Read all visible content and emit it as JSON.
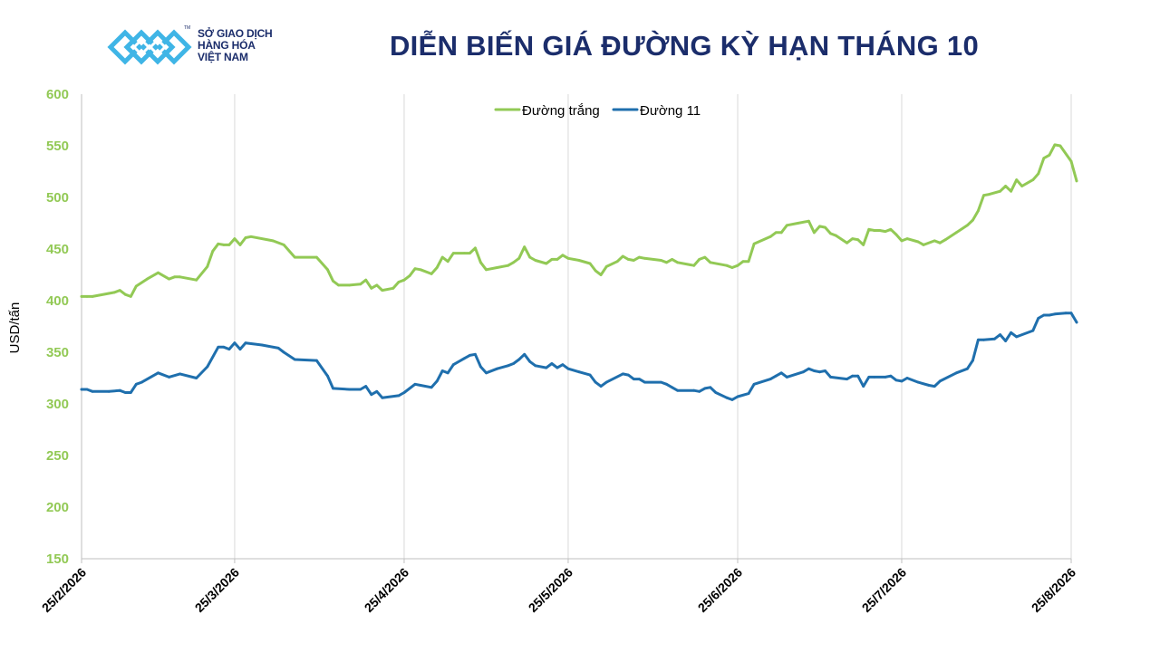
{
  "logo": {
    "icon": "vietnam-commodity-exchange-logo",
    "lines": [
      "SỞ GIAO DỊCH",
      "HÀNG HÓA",
      "VIỆT NAM"
    ],
    "colors": {
      "light": "#3fb5e6",
      "dark": "#1b2d6b"
    }
  },
  "colors": {
    "white_sugar": "#92c955",
    "raw_sugar": "#1f6fad",
    "title": "#1b2d6b",
    "grid": "#d9d9d9"
  },
  "chart_data": {
    "type": "line",
    "title": "DIỄN BIẾN GIÁ ĐƯỜNG KỲ HẠN THÁNG 10",
    "xlabel": "",
    "ylabel": "USD/tấn",
    "ylim": [
      150,
      600
    ],
    "yticks": [
      "600",
      "550",
      "500",
      "450",
      "400",
      "350",
      "300",
      "250",
      "200",
      "150"
    ],
    "xticks": [
      "25/2/2026",
      "25/3/2026",
      "25/4/2026",
      "25/5/2026",
      "25/6/2026",
      "25/7/2026",
      "25/8/2026"
    ],
    "grid": "vertical",
    "legend": "top-center",
    "series": [
      {
        "name": "Đường trắng",
        "color": "#92c955",
        "points": [
          [
            "25/2/2026",
            404
          ],
          [
            "26/2/2026",
            404
          ],
          [
            "27/2/2026",
            404
          ],
          [
            "2/3/2026",
            407
          ],
          [
            "3/3/2026",
            408
          ],
          [
            "4/3/2026",
            410
          ],
          [
            "5/3/2026",
            406
          ],
          [
            "6/3/2026",
            404
          ],
          [
            "7/3/2026",
            414
          ],
          [
            "9/3/2026",
            421
          ],
          [
            "11/3/2026",
            427
          ],
          [
            "13/3/2026",
            421
          ],
          [
            "14/3/2026",
            423
          ],
          [
            "15/3/2026",
            423
          ],
          [
            "18/3/2026",
            420
          ],
          [
            "20/3/2026",
            433
          ],
          [
            "21/3/2026",
            448
          ],
          [
            "22/3/2026",
            455
          ],
          [
            "23/3/2026",
            454
          ],
          [
            "24/3/2026",
            454
          ],
          [
            "25/3/2026",
            460
          ],
          [
            "26/3/2026",
            454
          ],
          [
            "27/3/2026",
            461
          ],
          [
            "28/3/2026",
            462
          ],
          [
            "1/4/2026",
            458
          ],
          [
            "3/4/2026",
            454
          ],
          [
            "5/4/2026",
            442
          ],
          [
            "9/4/2026",
            442
          ],
          [
            "11/4/2026",
            430
          ],
          [
            "12/4/2026",
            419
          ],
          [
            "13/4/2026",
            415
          ],
          [
            "15/4/2026",
            415
          ],
          [
            "17/4/2026",
            416
          ],
          [
            "18/4/2026",
            420
          ],
          [
            "19/4/2026",
            412
          ],
          [
            "20/4/2026",
            415
          ],
          [
            "21/4/2026",
            410
          ],
          [
            "23/4/2026",
            412
          ],
          [
            "24/4/2026",
            418
          ],
          [
            "25/4/2026",
            420
          ],
          [
            "26/4/2026",
            424
          ],
          [
            "27/4/2026",
            431
          ],
          [
            "28/4/2026",
            430
          ],
          [
            "30/4/2026",
            426
          ],
          [
            "1/5/2026",
            432
          ],
          [
            "2/5/2026",
            442
          ],
          [
            "3/5/2026",
            438
          ],
          [
            "4/5/2026",
            446
          ],
          [
            "6/5/2026",
            446
          ],
          [
            "7/5/2026",
            446
          ],
          [
            "8/5/2026",
            451
          ],
          [
            "9/5/2026",
            437
          ],
          [
            "10/5/2026",
            430
          ],
          [
            "12/5/2026",
            432
          ],
          [
            "14/5/2026",
            434
          ],
          [
            "15/5/2026",
            437
          ],
          [
            "16/5/2026",
            441
          ],
          [
            "17/5/2026",
            452
          ],
          [
            "18/5/2026",
            442
          ],
          [
            "19/5/2026",
            439
          ],
          [
            "21/5/2026",
            436
          ],
          [
            "22/5/2026",
            440
          ],
          [
            "23/5/2026",
            440
          ],
          [
            "24/5/2026",
            444
          ],
          [
            "25/5/2026",
            441
          ],
          [
            "27/5/2026",
            439
          ],
          [
            "29/5/2026",
            436
          ],
          [
            "30/5/2026",
            429
          ],
          [
            "31/5/2026",
            425
          ],
          [
            "1/6/2026",
            433
          ],
          [
            "3/6/2026",
            438
          ],
          [
            "4/6/2026",
            443
          ],
          [
            "5/6/2026",
            440
          ],
          [
            "6/6/2026",
            439
          ],
          [
            "7/6/2026",
            442
          ],
          [
            "8/6/2026",
            441
          ],
          [
            "11/6/2026",
            439
          ],
          [
            "12/6/2026",
            437
          ],
          [
            "13/6/2026",
            440
          ],
          [
            "14/6/2026",
            437
          ],
          [
            "17/6/2026",
            434
          ],
          [
            "18/6/2026",
            440
          ],
          [
            "19/6/2026",
            442
          ],
          [
            "20/6/2026",
            437
          ],
          [
            "23/6/2026",
            434
          ],
          [
            "24/6/2026",
            432
          ],
          [
            "25/6/2026",
            434
          ],
          [
            "26/6/2026",
            438
          ],
          [
            "27/6/2026",
            438
          ],
          [
            "28/6/2026",
            455
          ],
          [
            "1/7/2026",
            462
          ],
          [
            "2/7/2026",
            466
          ],
          [
            "3/7/2026",
            466
          ],
          [
            "4/7/2026",
            473
          ],
          [
            "6/7/2026",
            475
          ],
          [
            "8/7/2026",
            477
          ],
          [
            "9/7/2026",
            466
          ],
          [
            "10/7/2026",
            472
          ],
          [
            "11/7/2026",
            471
          ],
          [
            "12/7/2026",
            465
          ],
          [
            "13/7/2026",
            463
          ],
          [
            "15/7/2026",
            456
          ],
          [
            "16/7/2026",
            460
          ],
          [
            "17/7/2026",
            459
          ],
          [
            "18/7/2026",
            454
          ],
          [
            "19/7/2026",
            469
          ],
          [
            "20/7/2026",
            468
          ],
          [
            "21/7/2026",
            468
          ],
          [
            "22/7/2026",
            467
          ],
          [
            "23/7/2026",
            469
          ],
          [
            "24/7/2026",
            464
          ],
          [
            "25/7/2026",
            458
          ],
          [
            "26/7/2026",
            460
          ],
          [
            "28/7/2026",
            457
          ],
          [
            "29/7/2026",
            454
          ],
          [
            "31/7/2026",
            458
          ],
          [
            "1/8/2026",
            456
          ],
          [
            "2/8/2026",
            459
          ],
          [
            "4/8/2026",
            466
          ],
          [
            "6/8/2026",
            473
          ],
          [
            "7/8/2026",
            478
          ],
          [
            "8/8/2026",
            487
          ],
          [
            "9/8/2026",
            502
          ],
          [
            "10/8/2026",
            503
          ],
          [
            "12/8/2026",
            506
          ],
          [
            "13/8/2026",
            511
          ],
          [
            "14/8/2026",
            506
          ],
          [
            "15/8/2026",
            517
          ],
          [
            "16/8/2026",
            511
          ],
          [
            "18/8/2026",
            517
          ],
          [
            "19/8/2026",
            523
          ],
          [
            "20/8/2026",
            538
          ],
          [
            "21/8/2026",
            541
          ],
          [
            "22/8/2026",
            551
          ],
          [
            "23/8/2026",
            550
          ],
          [
            "25/8/2026",
            535
          ],
          [
            "26/8/2026",
            516
          ]
        ]
      },
      {
        "name": "Đường 11",
        "color": "#1f6fad",
        "points": [
          [
            "25/2/2026",
            314
          ],
          [
            "26/2/2026",
            314
          ],
          [
            "27/2/2026",
            312
          ],
          [
            "2/3/2026",
            312
          ],
          [
            "4/3/2026",
            313
          ],
          [
            "5/3/2026",
            311
          ],
          [
            "6/3/2026",
            311
          ],
          [
            "7/3/2026",
            319
          ],
          [
            "8/3/2026",
            321
          ],
          [
            "11/3/2026",
            330
          ],
          [
            "13/3/2026",
            326
          ],
          [
            "15/3/2026",
            329
          ],
          [
            "18/3/2026",
            325
          ],
          [
            "20/3/2026",
            336
          ],
          [
            "22/3/2026",
            355
          ],
          [
            "23/3/2026",
            355
          ],
          [
            "24/3/2026",
            353
          ],
          [
            "25/3/2026",
            359
          ],
          [
            "26/3/2026",
            353
          ],
          [
            "27/3/2026",
            359
          ],
          [
            "30/3/2026",
            357
          ],
          [
            "2/4/2026",
            354
          ],
          [
            "3/4/2026",
            350
          ],
          [
            "5/4/2026",
            343
          ],
          [
            "9/4/2026",
            342
          ],
          [
            "11/4/2026",
            327
          ],
          [
            "12/4/2026",
            315
          ],
          [
            "15/4/2026",
            314
          ],
          [
            "17/4/2026",
            314
          ],
          [
            "18/4/2026",
            317
          ],
          [
            "19/4/2026",
            309
          ],
          [
            "20/4/2026",
            312
          ],
          [
            "21/4/2026",
            306
          ],
          [
            "24/4/2026",
            308
          ],
          [
            "25/4/2026",
            311
          ],
          [
            "27/4/2026",
            319
          ],
          [
            "28/4/2026",
            318
          ],
          [
            "30/4/2026",
            316
          ],
          [
            "1/5/2026",
            322
          ],
          [
            "2/5/2026",
            332
          ],
          [
            "3/5/2026",
            330
          ],
          [
            "4/5/2026",
            338
          ],
          [
            "6/5/2026",
            344
          ],
          [
            "7/5/2026",
            347
          ],
          [
            "8/5/2026",
            348
          ],
          [
            "9/5/2026",
            336
          ],
          [
            "10/5/2026",
            330
          ],
          [
            "12/5/2026",
            334
          ],
          [
            "14/5/2026",
            337
          ],
          [
            "15/5/2026",
            339
          ],
          [
            "16/5/2026",
            343
          ],
          [
            "17/5/2026",
            348
          ],
          [
            "18/5/2026",
            341
          ],
          [
            "19/5/2026",
            337
          ],
          [
            "21/5/2026",
            335
          ],
          [
            "22/5/2026",
            339
          ],
          [
            "23/5/2026",
            335
          ],
          [
            "24/5/2026",
            338
          ],
          [
            "25/5/2026",
            334
          ],
          [
            "27/5/2026",
            331
          ],
          [
            "29/5/2026",
            328
          ],
          [
            "30/5/2026",
            321
          ],
          [
            "31/5/2026",
            317
          ],
          [
            "1/6/2026",
            321
          ],
          [
            "4/6/2026",
            329
          ],
          [
            "5/6/2026",
            328
          ],
          [
            "6/6/2026",
            324
          ],
          [
            "7/6/2026",
            324
          ],
          [
            "8/6/2026",
            321
          ],
          [
            "11/6/2026",
            321
          ],
          [
            "12/6/2026",
            319
          ],
          [
            "13/6/2026",
            316
          ],
          [
            "14/6/2026",
            313
          ],
          [
            "17/6/2026",
            313
          ],
          [
            "18/6/2026",
            312
          ],
          [
            "19/6/2026",
            315
          ],
          [
            "20/6/2026",
            316
          ],
          [
            "21/6/2026",
            311
          ],
          [
            "23/6/2026",
            306
          ],
          [
            "24/6/2026",
            304
          ],
          [
            "25/6/2026",
            307
          ],
          [
            "27/6/2026",
            310
          ],
          [
            "28/6/2026",
            319
          ],
          [
            "1/7/2026",
            324
          ],
          [
            "2/7/2026",
            327
          ],
          [
            "3/7/2026",
            330
          ],
          [
            "4/7/2026",
            326
          ],
          [
            "7/7/2026",
            331
          ],
          [
            "8/7/2026",
            334
          ],
          [
            "9/7/2026",
            332
          ],
          [
            "10/7/2026",
            331
          ],
          [
            "11/7/2026",
            332
          ],
          [
            "12/7/2026",
            326
          ],
          [
            "15/7/2026",
            324
          ],
          [
            "16/7/2026",
            327
          ],
          [
            "17/7/2026",
            327
          ],
          [
            "18/7/2026",
            317
          ],
          [
            "19/7/2026",
            326
          ],
          [
            "20/7/2026",
            326
          ],
          [
            "22/7/2026",
            326
          ],
          [
            "23/7/2026",
            327
          ],
          [
            "24/7/2026",
            323
          ],
          [
            "25/7/2026",
            322
          ],
          [
            "26/7/2026",
            325
          ],
          [
            "28/7/2026",
            321
          ],
          [
            "30/7/2026",
            318
          ],
          [
            "31/7/2026",
            317
          ],
          [
            "1/8/2026",
            322
          ],
          [
            "4/8/2026",
            330
          ],
          [
            "6/8/2026",
            334
          ],
          [
            "7/8/2026",
            342
          ],
          [
            "8/8/2026",
            362
          ],
          [
            "9/8/2026",
            362
          ],
          [
            "11/8/2026",
            363
          ],
          [
            "12/8/2026",
            367
          ],
          [
            "13/8/2026",
            361
          ],
          [
            "14/8/2026",
            369
          ],
          [
            "15/8/2026",
            365
          ],
          [
            "18/8/2026",
            371
          ],
          [
            "19/8/2026",
            383
          ],
          [
            "20/8/2026",
            386
          ],
          [
            "21/8/2026",
            386
          ],
          [
            "22/8/2026",
            387
          ],
          [
            "24/8/2026",
            388
          ],
          [
            "25/8/2026",
            388
          ],
          [
            "26/8/2026",
            379
          ]
        ]
      }
    ]
  }
}
